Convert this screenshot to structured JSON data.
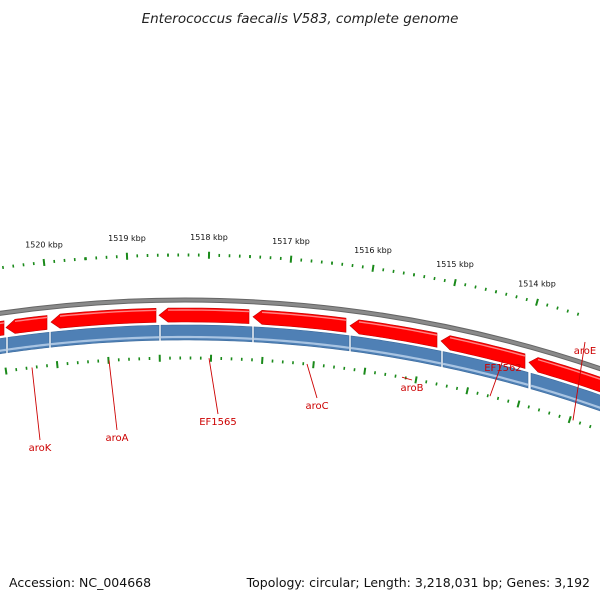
{
  "title": "Enterococcus faecalis V583, complete genome",
  "footer": {
    "accession": "Accession: NC_004668",
    "topology": "Topology: circular; Length: 3,218,031 bp; Genes: 3,192"
  },
  "colors": {
    "backbone": "#7a7a7a",
    "gene_forward": "#ff0000",
    "gene_forward_light": "#ff9a9a",
    "cds_track": "#4f80b5",
    "cds_track_light": "#a9c4e2",
    "ticks": "#1a8a1a",
    "gene_label": "#cc0000"
  },
  "ruler_labels": [
    "1514 kbp",
    "1515 kbp",
    "1516 kbp",
    "1517 kbp",
    "1518 kbp",
    "1519 kbp",
    "1520 kbp"
  ],
  "gene_labels": [
    "aroE",
    "EF1562",
    "aroB",
    "aroC",
    "EF1565",
    "aroA",
    "aroK"
  ]
}
